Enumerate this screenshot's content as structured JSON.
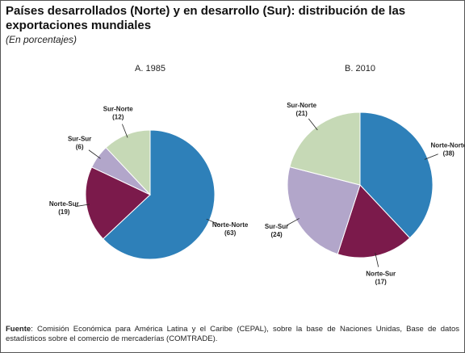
{
  "title": "Países desarrollados (Norte) y en desarrollo (Sur): distribución de las exportaciones mundiales",
  "subtitle": "(En porcentajes)",
  "source_label": "Fuente",
  "source_text": ": Comisión Económica para América Latina y el Caribe (CEPAL), sobre la base de Naciones Unidas, Base de datos estadísticos sobre el comercio de mercaderías (COMTRADE).",
  "chart_data": [
    {
      "type": "pie",
      "title": "A. 1985",
      "categories": [
        "Norte-Norte",
        "Norte-Sur",
        "Sur-Sur",
        "Sur-Norte"
      ],
      "values": [
        63,
        19,
        6,
        12
      ],
      "value_labels": [
        "(63)",
        "(19)",
        "(6)",
        "(12)"
      ],
      "colors": [
        "#2e80b9",
        "#7b1a4b",
        "#b2a6ca",
        "#c6d9b6"
      ]
    },
    {
      "type": "pie",
      "title": "B. 2010",
      "categories": [
        "Norte-Norte",
        "Norte-Sur",
        "Sur-Sur",
        "Sur-Norte"
      ],
      "values": [
        38,
        17,
        24,
        21
      ],
      "value_labels": [
        "(38)",
        "(17)",
        "(24)",
        "(21)"
      ],
      "colors": [
        "#2e80b9",
        "#7b1a4b",
        "#b2a6ca",
        "#c6d9b6"
      ]
    }
  ]
}
